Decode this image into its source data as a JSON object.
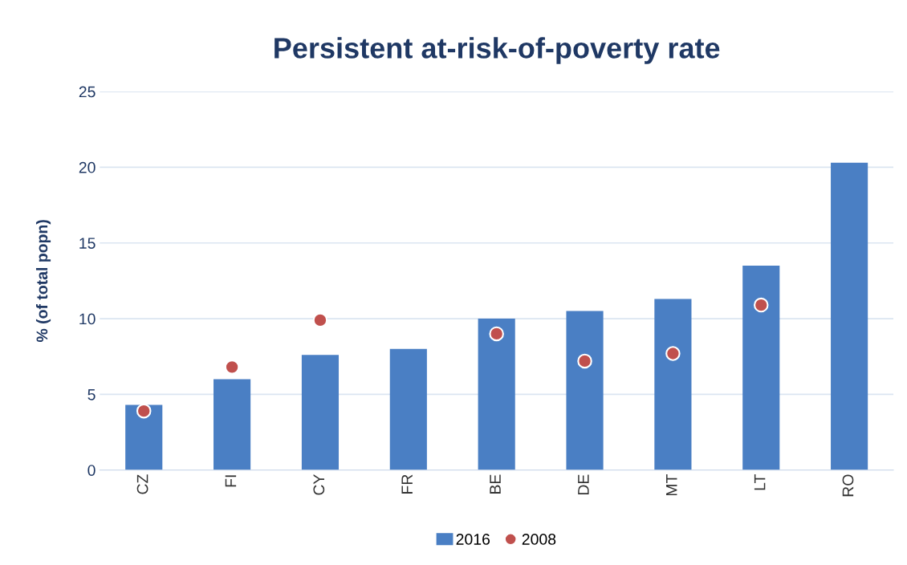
{
  "chart_data": {
    "type": "bar",
    "title": "Persistent at-risk-of-poverty rate",
    "ylabel": "% (of total popn)",
    "categories": [
      "CZ",
      "FI",
      "CY",
      "FR",
      "BE",
      "DE",
      "MT",
      "LT",
      "RO"
    ],
    "series": [
      {
        "name": "2016",
        "color": "#4a7fc4",
        "values": [
          4.3,
          6.0,
          7.6,
          8.0,
          10.0,
          10.5,
          11.3,
          13.5,
          20.3
        ]
      },
      {
        "name": "2008",
        "type": "scatter",
        "color": "#c0504d",
        "values": [
          3.9,
          6.8,
          9.9,
          null,
          9.0,
          7.2,
          7.7,
          10.9,
          null
        ]
      }
    ],
    "ylim": [
      0,
      25
    ],
    "yticks": [
      0,
      5,
      10,
      15,
      20,
      25
    ],
    "grid": "y",
    "legend": "bottom",
    "marker": "circle"
  }
}
